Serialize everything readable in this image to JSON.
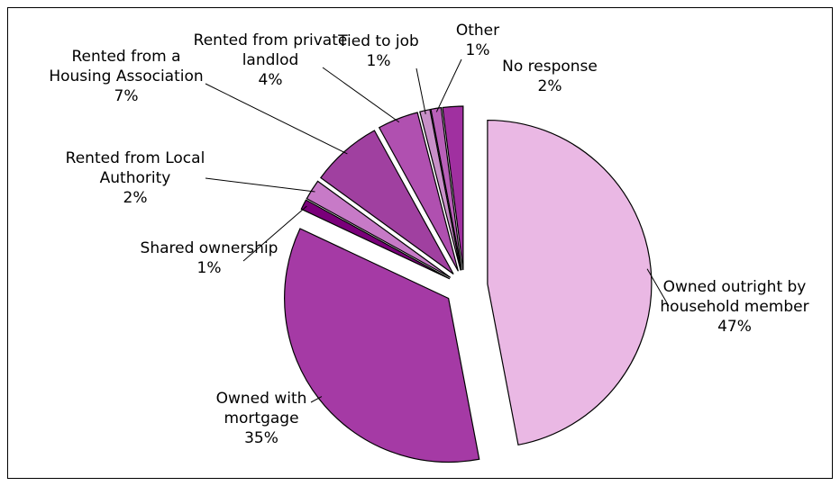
{
  "chart_data": {
    "type": "pie",
    "categories": [
      "Owned outright by household member",
      "Owned with mortgage",
      "Shared ownership",
      "Rented from Local Authority",
      "Rented from a Housing Association",
      "Rented from private landlod",
      "Tied to job",
      "Other",
      "No response"
    ],
    "values": [
      47,
      35,
      1,
      2,
      7,
      4,
      1,
      1,
      2
    ],
    "value_labels": [
      "47%",
      "35%",
      "1%",
      "2%",
      "7%",
      "4%",
      "1%",
      "1%",
      "2%"
    ],
    "colors": [
      "#eab8e4",
      "#a53aa5",
      "#7a007a",
      "#c77ac7",
      "#a040a0",
      "#b050b0",
      "#c890c8",
      "#b860b8",
      "#a030a0"
    ]
  }
}
